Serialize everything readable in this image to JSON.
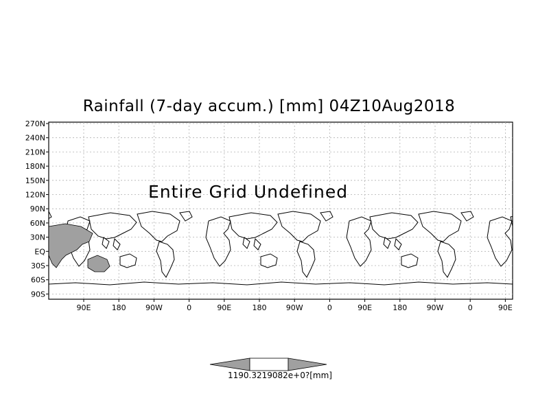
{
  "title": "Rainfall (7-day accum.) [mm] 04Z10Aug2018",
  "annotation": "Entire Grid Undefined",
  "lat_labels": [
    "270N",
    "240N",
    "210N",
    "180N",
    "150N",
    "120N",
    "90N",
    "60N",
    "30N",
    "EQ",
    "30S",
    "60S",
    "90S"
  ],
  "lon_labels": [
    "90E",
    "180",
    "90W",
    "0",
    "90E",
    "180",
    "90W",
    "0",
    "90E",
    "180",
    "90W",
    "0",
    "90E"
  ],
  "colorbar": {
    "label": "1190.3219082e+0?[mm]",
    "shade_color": "#a0a0a0",
    "center_color": "#ffffff"
  },
  "colors": {
    "land_shade": "#a0a0a0",
    "outline": "#000000",
    "grid": "#b0b0b0"
  }
}
